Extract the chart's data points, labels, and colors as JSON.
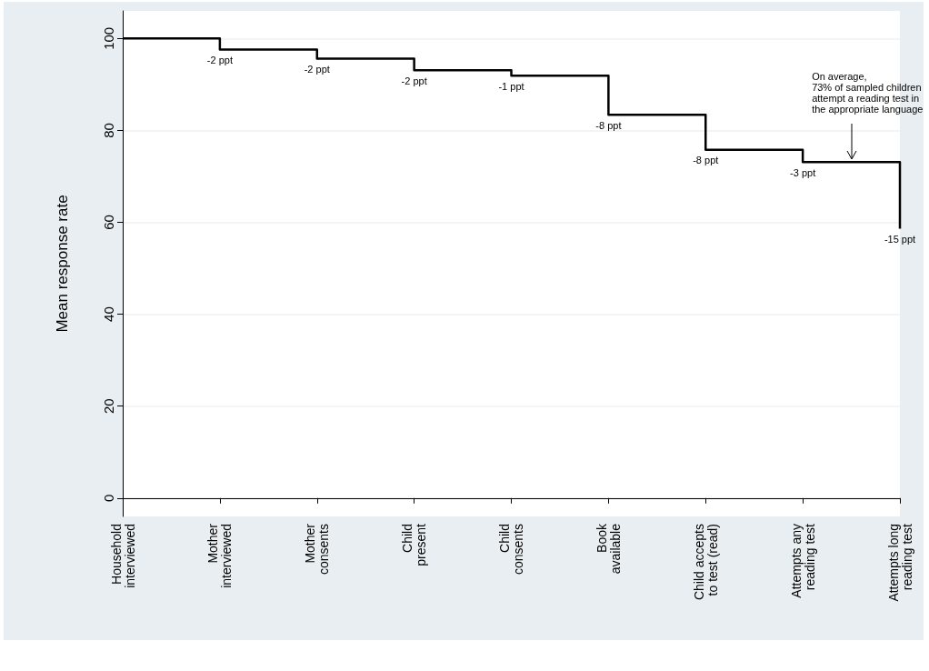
{
  "chart_data": {
    "type": "step",
    "ylabel": "Mean response rate",
    "categories": [
      "Household interviewed",
      "Mother interviewed",
      "Mother consents",
      "Child present",
      "Child consents",
      "Book available",
      "Child accepts to test (read)",
      "Attempts any reading test",
      "Attempts long reading test"
    ],
    "series": [
      {
        "color": "#000000",
        "values": [
          100,
          97.6,
          95.6,
          93.1,
          91.9,
          83.4,
          75.8,
          73.1,
          58.6
        ]
      }
    ],
    "ylim": [
      -4,
      106
    ],
    "yticks": [
      0,
      20,
      40,
      60,
      80,
      100
    ],
    "grid": "y",
    "marker": "none",
    "line_style": "solid",
    "annotations": [
      "On average,\n73% of sampled children\nattempt a reading test in\nthe appropriate language",
      {
        "text": "-2 ppt",
        "x": "Mother interviewed",
        "y": 97.6
      },
      {
        "text": "-2 ppt",
        "x": "Mother consents",
        "y": 95.6
      },
      {
        "text": "-2 ppt",
        "x": "Child present",
        "y": 93.1
      },
      {
        "text": "-1 ppt",
        "x": "Child consents",
        "y": 91.9
      },
      {
        "text": "-8 ppt",
        "x": "Book available",
        "y": 83.4
      },
      {
        "text": "-8 ppt",
        "x": "Child accepts to test (read)",
        "y": 75.8
      },
      {
        "text": "-3 ppt",
        "x": "Attempts any reading test",
        "y": 73.1
      },
      {
        "text": "-15 ppt",
        "x": "Attempts long reading test",
        "y": 58.6
      }
    ]
  }
}
